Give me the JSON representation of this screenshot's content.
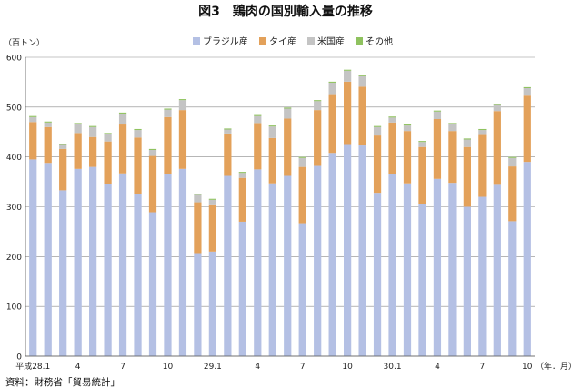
{
  "chart_data": {
    "type": "bar",
    "stacked": true,
    "title": "図3　鶏肉の国別輸入量の推移",
    "unit_label": "（百トン）",
    "x_unit_label": "（年．月）",
    "source": "資料：財務省「貿易統計」",
    "ylim": [
      0,
      600
    ],
    "yticks": [
      "0",
      "100",
      "200",
      "300",
      "400",
      "500",
      "600"
    ],
    "grid": true,
    "legend_position": "top-center",
    "x_labels": [
      {
        "index": 0,
        "text": "平成28.1"
      },
      {
        "index": 3,
        "text": "4"
      },
      {
        "index": 6,
        "text": "7"
      },
      {
        "index": 9,
        "text": "10"
      },
      {
        "index": 12,
        "text": "29.1"
      },
      {
        "index": 15,
        "text": "4"
      },
      {
        "index": 18,
        "text": "7"
      },
      {
        "index": 21,
        "text": "10"
      },
      {
        "index": 24,
        "text": "30.1"
      },
      {
        "index": 27,
        "text": "4"
      },
      {
        "index": 30,
        "text": "7"
      },
      {
        "index": 33,
        "text": "10"
      }
    ],
    "series": [
      {
        "name": "ブラジル産",
        "color": "#b4c0e4",
        "values": [
          395,
          388,
          333,
          376,
          380,
          346,
          367,
          326,
          289,
          366,
          376,
          207,
          210,
          362,
          270,
          375,
          347,
          362,
          267,
          382,
          408,
          424,
          423,
          328,
          366,
          347,
          305,
          356,
          348,
          300,
          320,
          344,
          271,
          390
        ]
      },
      {
        "name": "タイ産",
        "color": "#e3a15a",
        "values": [
          75,
          72,
          83,
          72,
          60,
          85,
          98,
          113,
          113,
          114,
          118,
          102,
          93,
          85,
          88,
          93,
          91,
          115,
          113,
          112,
          118,
          127,
          118,
          115,
          103,
          105,
          115,
          120,
          104,
          120,
          124,
          148,
          110,
          133
        ]
      },
      {
        "name": "米国産",
        "color": "#c4c4c4",
        "values": [
          10,
          9,
          8,
          18,
          20,
          15,
          22,
          15,
          12,
          15,
          20,
          15,
          11,
          8,
          10,
          14,
          23,
          20,
          18,
          18,
          23,
          22,
          21,
          17,
          10,
          11,
          10,
          15,
          14,
          15,
          10,
          12,
          17,
          15
        ]
      },
      {
        "name": "その他",
        "color": "#8fc25f",
        "values": [
          2,
          2,
          2,
          2,
          2,
          2,
          2,
          2,
          2,
          2,
          2,
          2,
          2,
          2,
          2,
          2,
          2,
          2,
          2,
          2,
          2,
          2,
          2,
          2,
          2,
          2,
          2,
          2,
          2,
          2,
          2,
          2,
          2,
          2
        ]
      }
    ]
  }
}
